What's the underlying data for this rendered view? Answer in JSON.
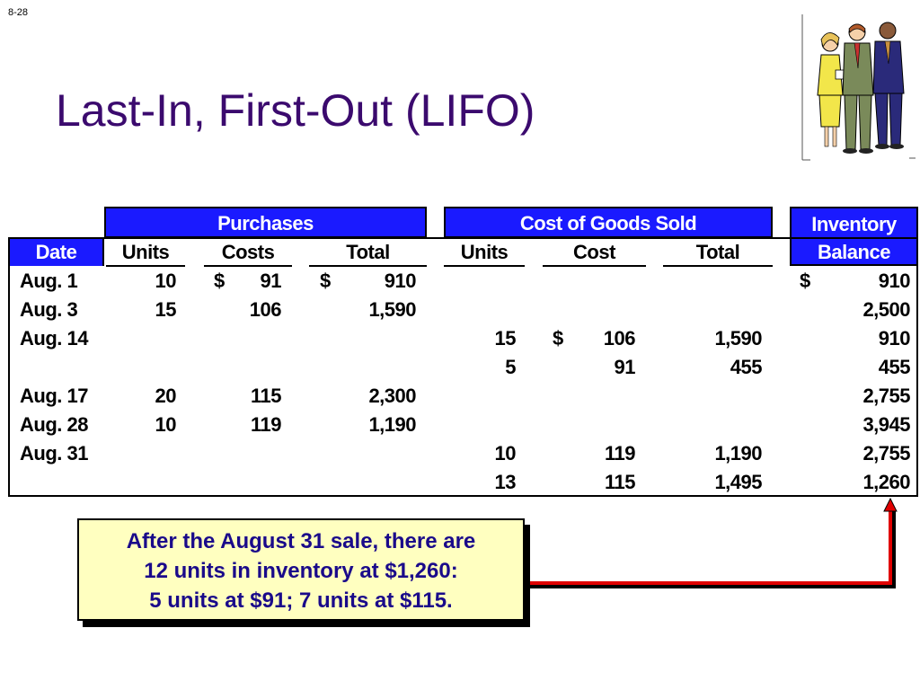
{
  "slide_number": "8-28",
  "title": "Last-In, First-Out (LIFO)",
  "headers": {
    "purchases": "Purchases",
    "cogs": "Cost of Goods Sold",
    "inventory_line1": "Inventory",
    "inventory_line2": "Balance",
    "date": "Date"
  },
  "columns": {
    "p_units": "Units",
    "p_costs": "Costs",
    "p_total": "Total",
    "c_units": "Units",
    "c_cost": "Cost",
    "c_total": "Total"
  },
  "rows": [
    {
      "date": "Aug. 1",
      "p_units": "10",
      "p_cost_sign": "$",
      "p_cost": "91",
      "p_total_sign": "$",
      "p_total": "910",
      "c_units": "",
      "c_cost_sign": "",
      "c_cost": "",
      "c_total": "",
      "bal_sign": "$",
      "bal": "910"
    },
    {
      "date": "Aug. 3",
      "p_units": "15",
      "p_cost_sign": "",
      "p_cost": "106",
      "p_total_sign": "",
      "p_total": "1,590",
      "c_units": "",
      "c_cost_sign": "",
      "c_cost": "",
      "c_total": "",
      "bal_sign": "",
      "bal": "2,500"
    },
    {
      "date": "Aug. 14",
      "p_units": "",
      "p_cost_sign": "",
      "p_cost": "",
      "p_total_sign": "",
      "p_total": "",
      "c_units": "15",
      "c_cost_sign": "$",
      "c_cost": "106",
      "c_total": "1,590",
      "bal_sign": "",
      "bal": "910"
    },
    {
      "date": "",
      "p_units": "",
      "p_cost_sign": "",
      "p_cost": "",
      "p_total_sign": "",
      "p_total": "",
      "c_units": "5",
      "c_cost_sign": "",
      "c_cost": "91",
      "c_total": "455",
      "bal_sign": "",
      "bal": "455"
    },
    {
      "date": "Aug. 17",
      "p_units": "20",
      "p_cost_sign": "",
      "p_cost": "115",
      "p_total_sign": "",
      "p_total": "2,300",
      "c_units": "",
      "c_cost_sign": "",
      "c_cost": "",
      "c_total": "",
      "bal_sign": "",
      "bal": "2,755"
    },
    {
      "date": "Aug. 28",
      "p_units": "10",
      "p_cost_sign": "",
      "p_cost": "119",
      "p_total_sign": "",
      "p_total": "1,190",
      "c_units": "",
      "c_cost_sign": "",
      "c_cost": "",
      "c_total": "",
      "bal_sign": "",
      "bal": "3,945"
    },
    {
      "date": "Aug. 31",
      "p_units": "",
      "p_cost_sign": "",
      "p_cost": "",
      "p_total_sign": "",
      "p_total": "",
      "c_units": "10",
      "c_cost_sign": "",
      "c_cost": "119",
      "c_total": "1,190",
      "bal_sign": "",
      "bal": "2,755"
    },
    {
      "date": "",
      "p_units": "",
      "p_cost_sign": "",
      "p_cost": "",
      "p_total_sign": "",
      "p_total": "",
      "c_units": "13",
      "c_cost_sign": "",
      "c_cost": "115",
      "c_total": "1,495",
      "bal_sign": "",
      "bal": "1,260"
    }
  ],
  "callout": {
    "line1": "After the August 31 sale, there are",
    "line2": "12 units in inventory at $1,260:",
    "line3": "5 units at $91;  7 units at $115."
  },
  "colors": {
    "title": "#3b0a6e",
    "header_bg": "#1a1aff",
    "callout_bg": "#ffffc0",
    "callout_text": "#1a0a8a",
    "arrow": "#e00000"
  }
}
